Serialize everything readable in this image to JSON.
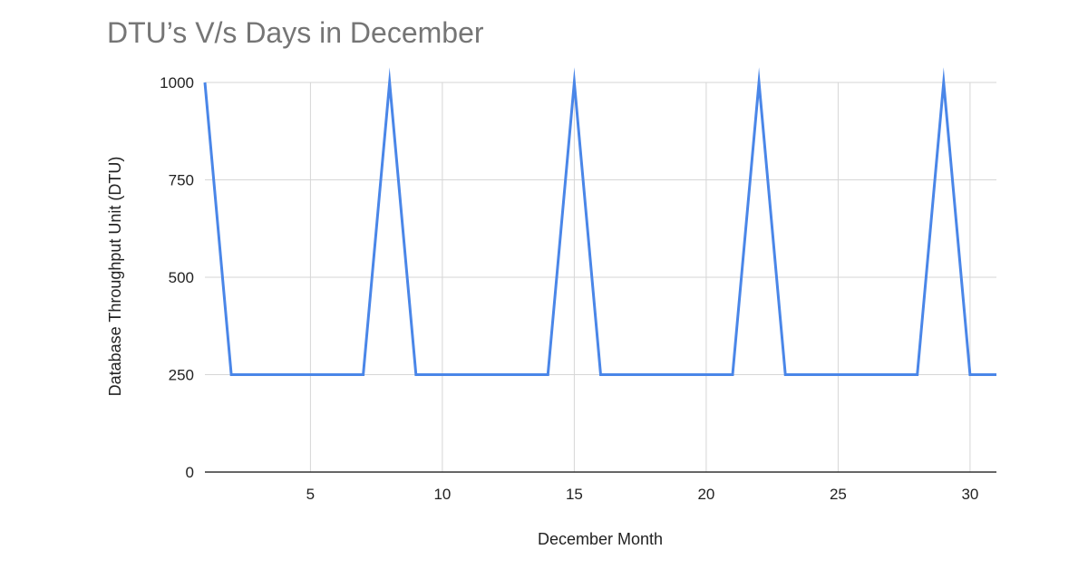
{
  "chart_data": {
    "type": "line",
    "title": "DTU’s V/s Days in December",
    "xlabel": "December Month",
    "ylabel": "Database Throughput Unit (DTU)",
    "xlim": [
      1,
      31
    ],
    "ylim": [
      0,
      1000
    ],
    "xticks": [
      5,
      10,
      15,
      20,
      25,
      30
    ],
    "yticks": [
      0,
      250,
      500,
      750,
      1000
    ],
    "grid": true,
    "legend": "none",
    "series": [
      {
        "color": "#4a86e8",
        "x": [
          1,
          2,
          3,
          4,
          5,
          6,
          7,
          8,
          9,
          10,
          11,
          12,
          13,
          14,
          15,
          16,
          17,
          18,
          19,
          20,
          21,
          22,
          23,
          24,
          25,
          26,
          27,
          28,
          29,
          30,
          31
        ],
        "y": [
          1000,
          250,
          250,
          250,
          250,
          250,
          250,
          1000,
          250,
          250,
          250,
          250,
          250,
          250,
          1000,
          250,
          250,
          250,
          250,
          250,
          250,
          1000,
          250,
          250,
          250,
          250,
          250,
          250,
          1000,
          250,
          250
        ]
      }
    ]
  }
}
